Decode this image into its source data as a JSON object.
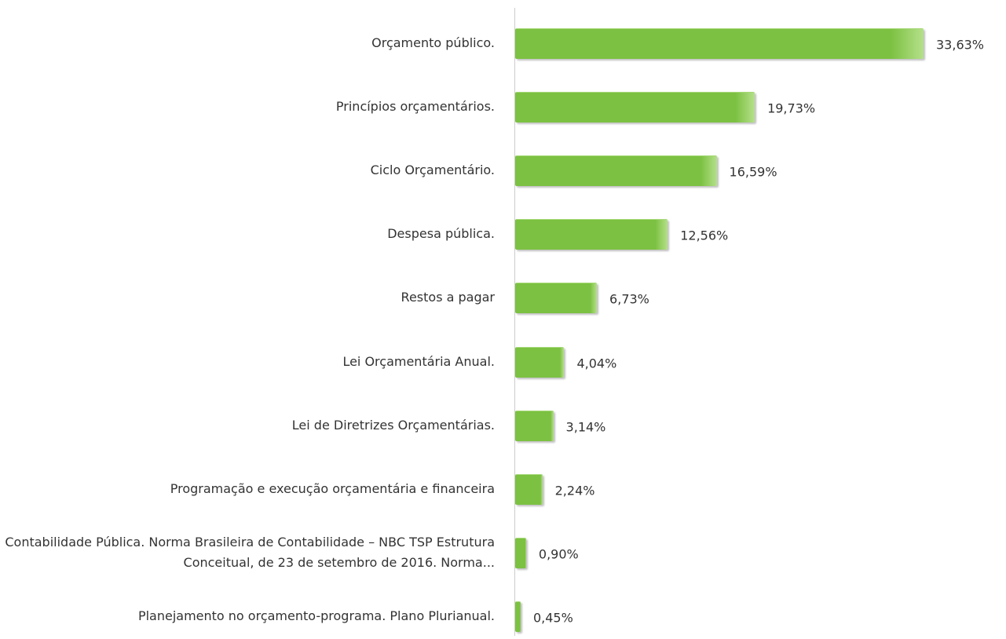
{
  "chart_data": {
    "type": "bar",
    "orientation": "horizontal",
    "categories": [
      "Orçamento público.",
      "Princípios orçamentários.",
      "Ciclo Orçamentário.",
      "Despesa pública.",
      "Restos a pagar",
      "Lei Orçamentária Anual.",
      "Lei de Diretrizes Orçamentárias.",
      "Programação e execução orçamentária e financeira",
      "Contabilidade Pública. Norma Brasileira de Contabilidade – NBC TSP Estrutura Conceitual, de 23 de setembro de 2016. Norma...",
      "Planejamento no orçamento-programa. Plano Plurianual."
    ],
    "values": [
      33.63,
      19.73,
      16.59,
      12.56,
      6.73,
      4.04,
      3.14,
      2.24,
      0.9,
      0.45
    ],
    "value_labels": [
      "33,63%",
      "19,73%",
      "16,59%",
      "12,56%",
      "6,73%",
      "4,04%",
      "3,14%",
      "2,24%",
      "0,90%",
      "0,45%"
    ],
    "color": "#7cc142"
  }
}
